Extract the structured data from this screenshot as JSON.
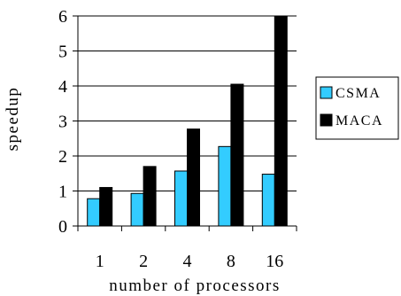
{
  "chart_data": {
    "type": "bar",
    "categories": [
      "1",
      "2",
      "4",
      "8",
      "16"
    ],
    "series": [
      {
        "name": "CSMA",
        "color": "#33ccff",
        "values": [
          0.78,
          0.93,
          1.57,
          2.27,
          1.48
        ]
      },
      {
        "name": "MACA",
        "color": "#000000",
        "values": [
          1.1,
          1.7,
          2.77,
          4.05,
          6.0
        ]
      }
    ],
    "xlabel": "number of processors",
    "ylabel": "speedup",
    "ylim": [
      0,
      6
    ],
    "yticks": [
      "0",
      "1",
      "2",
      "3",
      "4",
      "5",
      "6"
    ],
    "grid": true,
    "legend_position": "right"
  }
}
